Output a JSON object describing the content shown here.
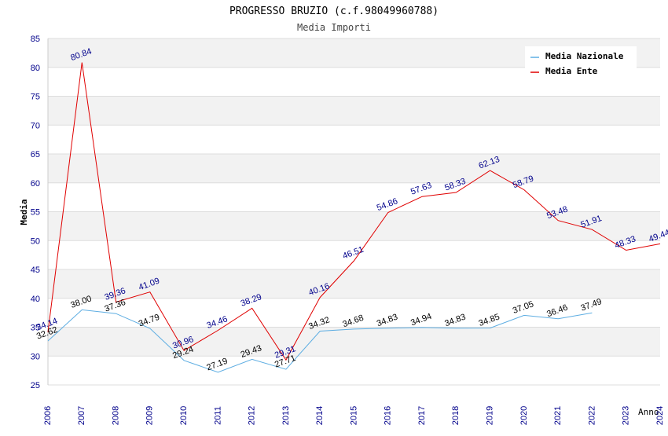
{
  "chart_data": {
    "type": "line",
    "title": "PROGRESSO BRUZIO (c.f.98049960788)",
    "subtitle": "Media Importi",
    "xlabel": "Anno",
    "ylabel": "Media",
    "ylim": [
      25,
      85
    ],
    "yticks": [
      "25",
      "30",
      "35",
      "40",
      "45",
      "50",
      "55",
      "60",
      "65",
      "70",
      "75",
      "80",
      "85"
    ],
    "categories": [
      "2006",
      "2007",
      "2008",
      "2009",
      "2010",
      "2011",
      "2012",
      "2013",
      "2014",
      "2015",
      "2016",
      "2017",
      "2018",
      "2019",
      "2020",
      "2021",
      "2022",
      "2023",
      "2024"
    ],
    "legend_position": "top-right",
    "series": [
      {
        "name": "Media Nazionale",
        "color": "#5dade2",
        "label_color": "#000000",
        "values": [
          32.62,
          38.0,
          37.36,
          34.79,
          29.24,
          27.19,
          29.43,
          27.71,
          34.32,
          34.68,
          34.83,
          34.94,
          34.83,
          34.85,
          37.05,
          36.46,
          37.49,
          null,
          null
        ],
        "labels": [
          "32.62",
          "38.00",
          "37.36",
          "34.79",
          "29.24",
          "27.19",
          "29.43",
          "27.71",
          "34.32",
          "34.68",
          "34.83",
          "34.94",
          "34.83",
          "34.85",
          "37.05",
          "36.46",
          "37.49",
          null,
          null
        ]
      },
      {
        "name": "Media Ente",
        "color": "#e00000",
        "label_color": "#00008b",
        "values": [
          34.14,
          80.84,
          39.36,
          41.09,
          30.96,
          34.46,
          38.29,
          29.31,
          40.16,
          46.51,
          54.86,
          57.63,
          58.33,
          62.13,
          58.79,
          53.48,
          51.91,
          48.33,
          49.44
        ],
        "labels": [
          "34.14",
          "80.84",
          "39.36",
          "41.09",
          "30.96",
          "34.46",
          "38.29",
          "29.31",
          "40.16",
          "46.51",
          "54.86",
          "57.63",
          "58.33",
          "62.13",
          "58.79",
          "53.48",
          "51.91",
          "48.33",
          "49.44"
        ]
      }
    ]
  }
}
